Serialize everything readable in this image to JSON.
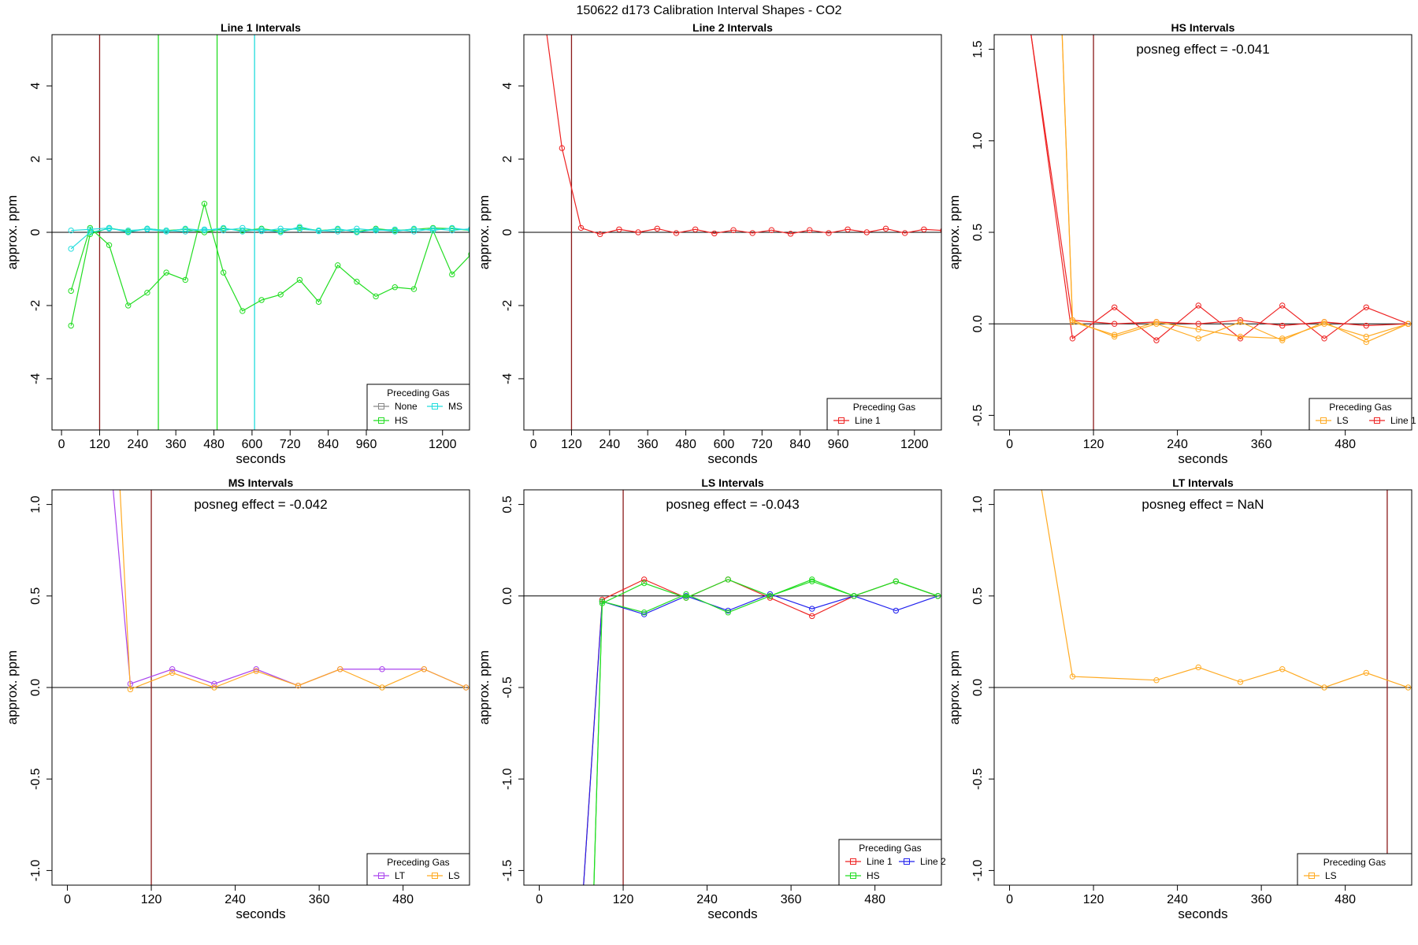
{
  "figure_title": "150622  d173   Calibration Interval Shapes - CO2",
  "colors": {
    "None": "#888888",
    "HS": "#22dd22",
    "MS": "#22dddd",
    "Line 1": "#ee2222",
    "LS": "#ffaa22",
    "LT": "#aa44ee",
    "Line 2": "#2222ee",
    "vline": "#8b1a1a"
  },
  "chart_data": [
    {
      "id": "line1",
      "type": "line",
      "title": "Line 1 Intervals",
      "xlabel": "seconds",
      "ylabel": "approx. ppm",
      "xlim": [
        -30,
        1285
      ],
      "ylim": [
        -5.4,
        5.4
      ],
      "xticks": [
        0,
        120,
        240,
        360,
        480,
        600,
        720,
        840,
        960,
        1200
      ],
      "yticks": [
        -4,
        -2,
        0,
        2,
        4
      ],
      "annotation": "",
      "vlines": [
        {
          "x": 120,
          "color": "vline"
        },
        {
          "x": 305,
          "color": "HS"
        },
        {
          "x": 490,
          "color": "HS"
        },
        {
          "x": 608,
          "color": "MS"
        }
      ],
      "legend": {
        "title": "Preceding Gas",
        "entries": [
          "None",
          "MS",
          "HS"
        ],
        "cols": 2
      },
      "series": [
        {
          "name": "HS",
          "color": "HS",
          "x": [
            30,
            90,
            150,
            210,
            270,
            330,
            390,
            450,
            510,
            570,
            630,
            690,
            750,
            810,
            870,
            930,
            990,
            1050,
            1110,
            1170,
            1230,
            1290
          ],
          "y": [
            -1.6,
            0.12,
            -0.35,
            -2.0,
            -1.65,
            -1.1,
            -1.3,
            0.78,
            -1.1,
            -2.15,
            -1.85,
            -1.7,
            -1.3,
            -1.9,
            -0.9,
            -1.35,
            -1.75,
            -1.5,
            -1.55,
            0.05,
            -1.15,
            -0.6
          ]
        },
        {
          "name": "HS",
          "color": "HS",
          "x": [
            30,
            90,
            150,
            210,
            270,
            330,
            390,
            450,
            510,
            570,
            630,
            690,
            750,
            810,
            870,
            930,
            990,
            1050,
            1110,
            1170,
            1230,
            1290
          ],
          "y": [
            -2.55,
            -0.05,
            0.12,
            0.02,
            0.1,
            0.05,
            0.08,
            0.0,
            0.1,
            0.05,
            0.1,
            0.03,
            0.12,
            0.05,
            0.08,
            0.02,
            0.1,
            0.05,
            0.08,
            0.12,
            0.1,
            0.05
          ]
        },
        {
          "name": "MS",
          "color": "MS",
          "x": [
            30,
            90,
            150,
            210,
            270,
            330,
            390,
            450,
            510,
            570,
            630,
            690,
            750,
            810,
            870,
            930,
            990,
            1050,
            1110,
            1170,
            1230,
            1290
          ],
          "y": [
            -0.45,
            0.0,
            0.1,
            0.05,
            0.08,
            0.02,
            0.1,
            0.05,
            0.12,
            0.02,
            0.08,
            0.0,
            0.15,
            0.03,
            0.1,
            0.0,
            0.08,
            0.02,
            0.1,
            0.05,
            0.12,
            0.05
          ]
        },
        {
          "name": "MS",
          "color": "MS",
          "x": [
            30,
            90,
            150,
            210,
            270,
            330,
            390,
            450,
            510,
            570,
            630,
            690,
            750,
            810,
            870,
            930,
            990,
            1050,
            1110,
            1170,
            1230,
            1290
          ],
          "y": [
            0.05,
            0.08,
            0.12,
            0.0,
            0.1,
            0.05,
            0.02,
            0.08,
            0.05,
            0.12,
            0.03,
            0.1,
            0.08,
            0.05,
            0.02,
            0.1,
            0.05,
            0.08,
            0.02,
            0.1,
            0.05,
            0.1
          ]
        }
      ]
    },
    {
      "id": "line2",
      "type": "line",
      "title": "Line 2 Intervals",
      "xlabel": "seconds",
      "ylabel": "approx. ppm",
      "xlim": [
        -30,
        1285
      ],
      "ylim": [
        -5.4,
        5.4
      ],
      "xticks": [
        0,
        120,
        240,
        360,
        480,
        600,
        720,
        840,
        960,
        1200
      ],
      "yticks": [
        -4,
        -2,
        0,
        2,
        4
      ],
      "annotation": "",
      "vlines": [
        {
          "x": 120,
          "color": "vline"
        }
      ],
      "legend": {
        "title": "Preceding Gas",
        "entries": [
          "Line 1"
        ],
        "cols": 1
      },
      "series": [
        {
          "name": "Line 1",
          "color": "Line 1",
          "x": [
            30,
            90,
            150,
            210,
            270,
            330,
            390,
            450,
            510,
            570,
            630,
            690,
            750,
            810,
            870,
            930,
            990,
            1050,
            1110,
            1170,
            1230,
            1290
          ],
          "y": [
            6.2,
            2.3,
            0.12,
            -0.05,
            0.08,
            0.0,
            0.1,
            -0.02,
            0.08,
            -0.03,
            0.06,
            -0.02,
            0.06,
            -0.04,
            0.06,
            -0.02,
            0.08,
            0.0,
            0.1,
            -0.02,
            0.08,
            0.05
          ]
        }
      ]
    },
    {
      "id": "hs",
      "type": "line",
      "title": "HS Intervals",
      "xlabel": "seconds",
      "ylabel": "approx. ppm",
      "xlim": [
        -22,
        575
      ],
      "ylim": [
        -0.58,
        1.58
      ],
      "xticks": [
        0,
        120,
        240,
        360,
        480
      ],
      "yticks": [
        -0.5,
        0.0,
        0.5,
        1.0,
        1.5
      ],
      "annotation": "posneg effect = -0.041",
      "vlines": [
        {
          "x": 120,
          "color": "vline"
        }
      ],
      "legend": {
        "title": "Preceding Gas",
        "entries": [
          "LS",
          "Line 1"
        ],
        "cols": 2
      },
      "series": [
        {
          "name": "Line 1",
          "color": "Line 1",
          "x": [
            30,
            90,
            150,
            210,
            270,
            330,
            390,
            450,
            510,
            570
          ],
          "y": [
            1.6,
            -0.08,
            0.09,
            -0.09,
            0.1,
            -0.08,
            0.1,
            -0.08,
            0.09,
            0.0
          ]
        },
        {
          "name": "Line 1",
          "color": "Line 1",
          "x": [
            30,
            90,
            150,
            210,
            270,
            330,
            390,
            450,
            510,
            570
          ],
          "y": [
            1.6,
            0.02,
            0.0,
            0.01,
            0.0,
            0.02,
            -0.01,
            0.01,
            -0.01,
            0.0
          ]
        },
        {
          "name": "LS",
          "color": "LS",
          "x": [
            75,
            90,
            150,
            210,
            270,
            330,
            390,
            450,
            510,
            570
          ],
          "y": [
            1.6,
            0.02,
            -0.07,
            0.0,
            -0.08,
            0.01,
            -0.09,
            0.01,
            -0.1,
            0.0
          ]
        },
        {
          "name": "LS",
          "color": "LS",
          "x": [
            75,
            90,
            150,
            210,
            270,
            330,
            390,
            450,
            510,
            570
          ],
          "y": [
            1.6,
            0.01,
            -0.06,
            0.01,
            -0.03,
            -0.07,
            -0.08,
            0.0,
            -0.07,
            0.0
          ]
        }
      ]
    },
    {
      "id": "ms",
      "type": "line",
      "title": "MS Intervals",
      "xlabel": "seconds",
      "ylabel": "approx. ppm",
      "xlim": [
        -22,
        575
      ],
      "ylim": [
        -1.08,
        1.08
      ],
      "xticks": [
        0,
        120,
        240,
        360,
        480
      ],
      "yticks": [
        -1.0,
        -0.5,
        0.0,
        0.5,
        1.0
      ],
      "annotation": "posneg effect = -0.042",
      "vlines": [
        {
          "x": 120,
          "color": "vline"
        }
      ],
      "legend": {
        "title": "Preceding Gas",
        "entries": [
          "LT",
          "LS"
        ],
        "cols": 2
      },
      "series": [
        {
          "name": "LT",
          "color": "LT",
          "x": [
            65,
            90,
            150,
            210,
            270,
            330,
            390,
            450,
            510,
            570
          ],
          "y": [
            1.1,
            0.02,
            0.1,
            0.02,
            0.1,
            0.01,
            0.1,
            0.1,
            0.1,
            0.0
          ]
        },
        {
          "name": "LS",
          "color": "LS",
          "x": [
            75,
            90,
            150,
            210,
            270,
            330,
            390,
            450,
            510,
            570
          ],
          "y": [
            1.1,
            -0.01,
            0.08,
            0.0,
            0.09,
            0.01,
            0.1,
            0.0,
            0.1,
            0.0
          ]
        }
      ]
    },
    {
      "id": "ls",
      "type": "line",
      "title": "LS Intervals",
      "xlabel": "seconds",
      "ylabel": "approx. ppm",
      "xlim": [
        -22,
        575
      ],
      "ylim": [
        -1.58,
        0.58
      ],
      "xticks": [
        0,
        120,
        240,
        360,
        480
      ],
      "yticks": [
        -1.5,
        -1.0,
        -0.5,
        0.0,
        0.5
      ],
      "annotation": "posneg effect = -0.043",
      "vlines": [
        {
          "x": 120,
          "color": "vline"
        }
      ],
      "legend": {
        "title": "Preceding Gas",
        "entries": [
          "Line 1",
          "Line 2",
          "HS"
        ],
        "cols": 2
      },
      "series": [
        {
          "name": "Line 1",
          "color": "Line 1",
          "x": [
            63,
            90,
            150,
            210,
            270,
            330,
            390,
            450,
            510,
            570
          ],
          "y": [
            -1.6,
            -0.02,
            0.09,
            -0.01,
            0.09,
            -0.01,
            -0.11,
            0.0,
            0.08,
            0.0
          ]
        },
        {
          "name": "Line 2",
          "color": "Line 2",
          "x": [
            63,
            90,
            150,
            210,
            270,
            330,
            390,
            450,
            510,
            570
          ],
          "y": [
            -1.6,
            -0.03,
            -0.1,
            0.0,
            -0.08,
            0.01,
            -0.07,
            0.0,
            -0.08,
            0.0
          ]
        },
        {
          "name": "HS",
          "color": "HS",
          "x": [
            78,
            90,
            150,
            210,
            270,
            330,
            390,
            450,
            510,
            570
          ],
          "y": [
            -1.6,
            -0.04,
            0.07,
            -0.01,
            0.09,
            0.0,
            0.09,
            0.0,
            0.08,
            0.0
          ]
        },
        {
          "name": "HS",
          "color": "HS",
          "x": [
            78,
            90,
            150,
            210,
            270,
            330,
            390,
            450,
            510,
            570
          ],
          "y": [
            -1.6,
            -0.03,
            -0.09,
            0.01,
            -0.09,
            0.0,
            0.08,
            0.0,
            0.08,
            0.0
          ]
        }
      ]
    },
    {
      "id": "lt",
      "type": "line",
      "title": "LT Intervals",
      "xlabel": "seconds",
      "ylabel": "approx. ppm",
      "xlim": [
        -22,
        575
      ],
      "ylim": [
        -1.08,
        1.08
      ],
      "xticks": [
        0,
        120,
        240,
        360,
        480
      ],
      "yticks": [
        -1.0,
        -0.5,
        0.0,
        0.5,
        1.0
      ],
      "annotation": "posneg effect = NaN",
      "vlines": [
        {
          "x": 540,
          "color": "vline"
        }
      ],
      "legend": {
        "title": "Preceding Gas",
        "entries": [
          "LS"
        ],
        "cols": 1
      },
      "series": [
        {
          "name": "LS",
          "color": "LS",
          "x": [
            45,
            90,
            210,
            270,
            330,
            390,
            450,
            510,
            570
          ],
          "y": [
            1.1,
            0.06,
            0.04,
            0.11,
            0.03,
            0.1,
            0.0,
            0.08,
            0.0
          ]
        }
      ]
    }
  ]
}
